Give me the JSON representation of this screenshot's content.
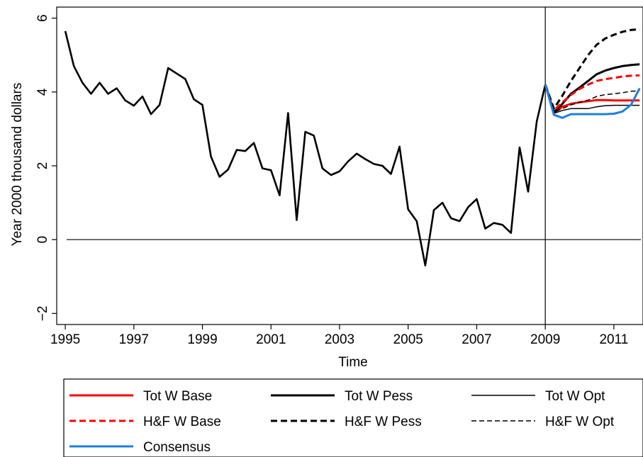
{
  "chart_data": {
    "type": "line",
    "title": "",
    "xlabel": "Time",
    "ylabel": "Year 2000 thousand dollars",
    "xlim": [
      1994.75,
      2011.85
    ],
    "ylim": [
      -2.3,
      6.3
    ],
    "x_ticks": [
      1995,
      1997,
      1999,
      2001,
      2003,
      2005,
      2007,
      2009,
      2011
    ],
    "x_tick_labels": [
      "1995",
      "1997",
      "1999",
      "2001",
      "2003",
      "2005",
      "2007",
      "2009",
      "2011"
    ],
    "y_ticks": [
      -2,
      0,
      2,
      4,
      6
    ],
    "y_tick_labels": [
      "−2",
      "0",
      "2",
      "4",
      "6"
    ],
    "vertical_line_x": 2009,
    "horizontal_line_y": 0,
    "grid": false,
    "legend_position": "bottom",
    "history": {
      "x": [
        1995.0,
        1995.25,
        1995.5,
        1995.75,
        1996.0,
        1996.25,
        1996.5,
        1996.75,
        1997.0,
        1997.25,
        1997.5,
        1997.75,
        1998.0,
        1998.25,
        1998.5,
        1998.75,
        1999.0,
        1999.25,
        1999.5,
        1999.75,
        2000.0,
        2000.25,
        2000.5,
        2000.75,
        2001.0,
        2001.25,
        2001.5,
        2001.75,
        2002.0,
        2002.25,
        2002.5,
        2002.75,
        2003.0,
        2003.25,
        2003.5,
        2003.75,
        2004.0,
        2004.25,
        2004.5,
        2004.75,
        2005.0,
        2005.25,
        2005.5,
        2005.75,
        2006.0,
        2006.25,
        2006.5,
        2006.75,
        2007.0,
        2007.25,
        2007.5,
        2007.75,
        2008.0,
        2008.25,
        2008.5,
        2008.75,
        2009.0
      ],
      "values": [
        5.65,
        4.7,
        4.25,
        3.95,
        4.25,
        3.95,
        4.1,
        3.77,
        3.63,
        3.88,
        3.4,
        3.65,
        4.65,
        4.5,
        4.35,
        3.8,
        3.65,
        2.25,
        1.7,
        1.9,
        2.43,
        2.4,
        2.62,
        1.93,
        1.88,
        1.2,
        3.43,
        0.53,
        2.92,
        2.82,
        1.93,
        1.75,
        1.85,
        2.12,
        2.33,
        2.18,
        2.05,
        2.0,
        1.78,
        2.52,
        0.82,
        0.5,
        -0.7,
        0.8,
        1.0,
        0.58,
        0.5,
        0.88,
        1.1,
        0.3,
        0.45,
        0.4,
        0.18,
        2.5,
        1.3,
        3.2,
        4.2
      ]
    },
    "forecast_x": [
      2009.0,
      2009.25,
      2009.5,
      2009.75,
      2010.0,
      2010.25,
      2010.5,
      2010.75,
      2011.0,
      2011.25,
      2011.5,
      2011.75
    ],
    "series": [
      {
        "name": "Tot W Base",
        "color": "#ff0000",
        "dash": "solid",
        "weight": "thick",
        "values": [
          4.2,
          3.45,
          3.6,
          3.68,
          3.72,
          3.75,
          3.78,
          3.78,
          3.77,
          3.77,
          3.77,
          3.77
        ]
      },
      {
        "name": "Tot W Pess",
        "color": "#000000",
        "dash": "solid",
        "weight": "thick",
        "values": [
          4.2,
          3.45,
          3.68,
          3.95,
          4.12,
          4.3,
          4.48,
          4.58,
          4.65,
          4.7,
          4.73,
          4.75
        ]
      },
      {
        "name": "Tot W Opt",
        "color": "#000000",
        "dash": "solid",
        "weight": "thin",
        "values": [
          4.2,
          3.42,
          3.5,
          3.55,
          3.55,
          3.55,
          3.6,
          3.63,
          3.64,
          3.64,
          3.64,
          3.64
        ]
      },
      {
        "name": "H&F W Base",
        "color": "#ff0000",
        "dash": "dashed",
        "weight": "thick",
        "values": [
          4.2,
          3.5,
          3.72,
          3.92,
          4.08,
          4.2,
          4.3,
          4.35,
          4.38,
          4.42,
          4.44,
          4.45
        ]
      },
      {
        "name": "H&F W Pess",
        "color": "#000000",
        "dash": "dashed",
        "weight": "thick",
        "values": [
          4.2,
          3.55,
          3.9,
          4.3,
          4.65,
          5.0,
          5.28,
          5.45,
          5.55,
          5.63,
          5.68,
          5.7
        ]
      },
      {
        "name": "H&F W Opt",
        "color": "#000000",
        "dash": "dashed",
        "weight": "thin",
        "values": [
          4.2,
          3.45,
          3.55,
          3.65,
          3.72,
          3.78,
          3.88,
          3.93,
          3.95,
          3.98,
          4.02,
          4.03
        ]
      },
      {
        "name": "Consensus",
        "color": "#1e7fe0",
        "dash": "solid",
        "weight": "thick",
        "values": [
          4.2,
          3.38,
          3.3,
          3.4,
          3.4,
          3.4,
          3.4,
          3.4,
          3.41,
          3.47,
          3.65,
          4.1
        ]
      }
    ]
  }
}
